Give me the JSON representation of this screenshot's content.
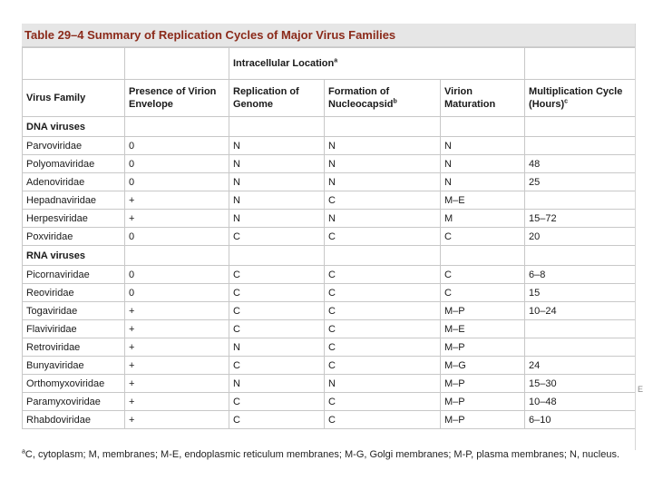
{
  "title": "Table 29–4 Summary of Replication Cycles of Major Virus Families",
  "group_header": "Intracellular Location",
  "group_header_sup": "a",
  "columns": [
    {
      "label": "Virus Family",
      "sup": ""
    },
    {
      "label": "Presence of Virion Envelope",
      "sup": ""
    },
    {
      "label": "Replication of Genome",
      "sup": ""
    },
    {
      "label": "Formation of Nucleocapsid",
      "sup": "b"
    },
    {
      "label": "Virion Maturation",
      "sup": ""
    },
    {
      "label": "Multiplication Cycle (Hours)",
      "sup": "c"
    }
  ],
  "sections": [
    {
      "label": "DNA viruses",
      "rows": [
        [
          "Parvoviridae",
          "0",
          "N",
          "N",
          "N",
          ""
        ],
        [
          "Polyomaviridae",
          "0",
          "N",
          "N",
          "N",
          "48"
        ],
        [
          "Adenoviridae",
          "0",
          "N",
          "N",
          "N",
          "25"
        ],
        [
          "Hepadnaviridae",
          "+",
          "N",
          "C",
          "M–E",
          ""
        ],
        [
          "Herpesviridae",
          "+",
          "N",
          "N",
          "M",
          "15–72"
        ],
        [
          "Poxviridae",
          "0",
          "C",
          "C",
          "C",
          "20"
        ]
      ]
    },
    {
      "label": "RNA viruses",
      "rows": [
        [
          "Picornaviridae",
          "0",
          "C",
          "C",
          "C",
          "6–8"
        ],
        [
          "Reoviridae",
          "0",
          "C",
          "C",
          "C",
          "15"
        ],
        [
          "Togaviridae",
          "+",
          "C",
          "C",
          "M–P",
          "10–24"
        ],
        [
          "Flaviviridae",
          "+",
          "C",
          "C",
          "M–E",
          ""
        ],
        [
          "Retroviridae",
          "+",
          "N",
          "C",
          "M–P",
          ""
        ],
        [
          "Bunyaviridae",
          "+",
          "C",
          "C",
          "M–G",
          "24"
        ],
        [
          "Orthomyxoviridae",
          "+",
          "N",
          "N",
          "M–P",
          "15–30"
        ],
        [
          "Paramyxoviridae",
          "+",
          "C",
          "C",
          "M–P",
          "10–48"
        ],
        [
          "Rhabdoviridae",
          "+",
          "C",
          "C",
          "M–P",
          "6–10"
        ]
      ]
    }
  ],
  "footnote_sup": "a",
  "footnote": "C, cytoplasm; M, membranes; M-E, endoplasmic reticulum membranes; M-G, Golgi membranes; M-P, plasma membranes; N, nucleus.",
  "edge_mark": "E"
}
